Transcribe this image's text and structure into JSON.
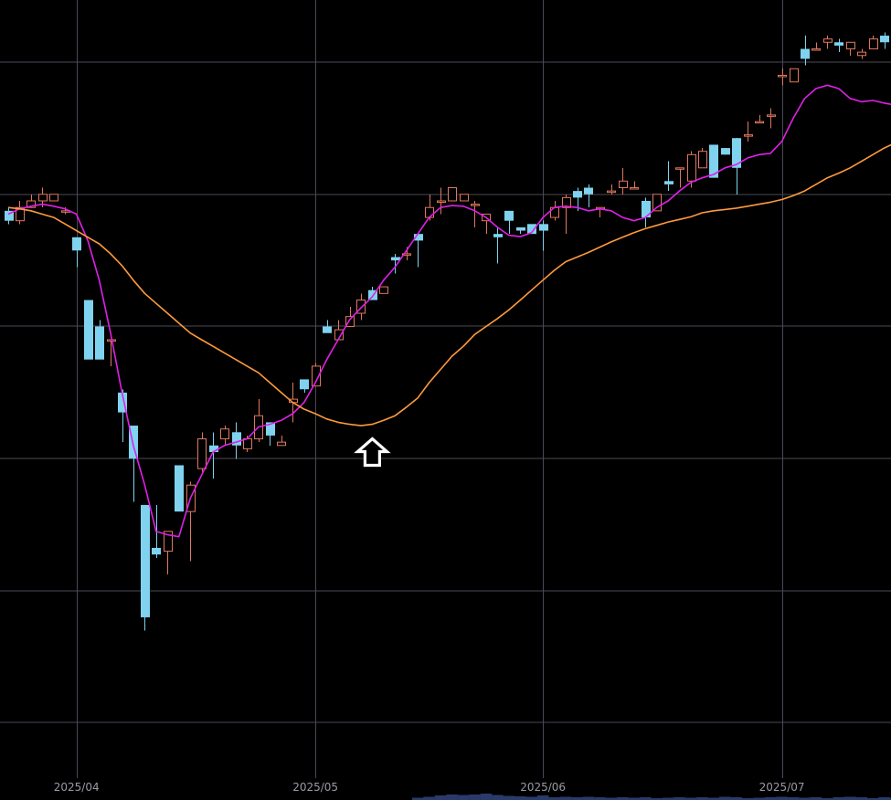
{
  "chart_data": {
    "type": "candlestick",
    "title": "",
    "xlabel": "",
    "ylabel": "",
    "x_tick_labels": [
      "2025/04",
      "2025/05",
      "2025/06",
      "2025/07"
    ],
    "x_tick_index": [
      6,
      27,
      47,
      68
    ],
    "num_candles": 79,
    "price_range": [
      0,
      100
    ],
    "grid": true,
    "colors": {
      "background": "#000000",
      "grid": "#4a4a58",
      "up": "#e0785e",
      "down": "#7fd3ef",
      "ma_short": "#e020e8",
      "ma_long": "#ff9a3c",
      "tick_text": "#9a9aa6",
      "volume": "#2a3a6a"
    },
    "indicator_icon": "up-arrow-outline-icon",
    "indicator_index": 32,
    "indicator_price": 43,
    "candles": [
      [
        77.5,
        76,
        78,
        75.5
      ],
      [
        76,
        78,
        79,
        75.5
      ],
      [
        78,
        79,
        80,
        78
      ],
      [
        79,
        80,
        81,
        78
      ],
      [
        79,
        80,
        80,
        79
      ],
      [
        77.5,
        77.5,
        78,
        77
      ],
      [
        73.5,
        71.5,
        73.5,
        69
      ],
      [
        64,
        55,
        64,
        55
      ],
      [
        60,
        55,
        61,
        55
      ],
      [
        58,
        58,
        58,
        54
      ],
      [
        50,
        47,
        50.5,
        42.5
      ],
      [
        45,
        40,
        45,
        33.5
      ],
      [
        33,
        16,
        33,
        14
      ],
      [
        26.5,
        25.5,
        33,
        25
      ],
      [
        26,
        29,
        27,
        22.5
      ],
      [
        39,
        32,
        39,
        32
      ],
      [
        32,
        36,
        36.5,
        24.5
      ],
      [
        38.5,
        43,
        44,
        38
      ],
      [
        42,
        41,
        44,
        37
      ],
      [
        43,
        44.5,
        45,
        42
      ],
      [
        44,
        42,
        45.5,
        40
      ],
      [
        41.5,
        43,
        43.5,
        41
      ],
      [
        43,
        46.5,
        49,
        42.5
      ],
      [
        45.5,
        43.5,
        45.5,
        42
      ],
      [
        42,
        42.5,
        43.5,
        42
      ],
      [
        48.5,
        49,
        51.5,
        45.5
      ],
      [
        52,
        50.5,
        52,
        50
      ],
      [
        51,
        54,
        54.5,
        51
      ],
      [
        60,
        59,
        61,
        59
      ],
      [
        58,
        59.5,
        61,
        58.5
      ],
      [
        60,
        61.5,
        63,
        60
      ],
      [
        62,
        64,
        65,
        61
      ],
      [
        65.5,
        64,
        66,
        64
      ],
      [
        65,
        66,
        66,
        65
      ],
      [
        70.5,
        70,
        71,
        68
      ],
      [
        71,
        71,
        72,
        70
      ],
      [
        74,
        73,
        74,
        69
      ],
      [
        76.5,
        78,
        80,
        76
      ],
      [
        79,
        79,
        81,
        77
      ],
      [
        79,
        81,
        81,
        79
      ],
      [
        79,
        80,
        80,
        79
      ],
      [
        78.5,
        78.5,
        79,
        75
      ],
      [
        76,
        77,
        77,
        74
      ],
      [
        74,
        73.5,
        75,
        69.5
      ],
      [
        77.5,
        76,
        77.5,
        74
      ],
      [
        75,
        74.5,
        75,
        74
      ],
      [
        75.5,
        74,
        75.5,
        74
      ],
      [
        75.5,
        74.5,
        76,
        71.5
      ],
      [
        76.5,
        78,
        79,
        76
      ],
      [
        78,
        79.5,
        80,
        74
      ],
      [
        80.5,
        79.5,
        81,
        77.5
      ],
      [
        81,
        80,
        81.5,
        78
      ],
      [
        78,
        78,
        78,
        76.5
      ],
      [
        80.5,
        80.5,
        81.5,
        80
      ],
      [
        81,
        82,
        84,
        80
      ],
      [
        81,
        81,
        82,
        81
      ],
      [
        79,
        76.5,
        79.5,
        75
      ],
      [
        77.5,
        80,
        80,
        78
      ],
      [
        82,
        81.5,
        85,
        80.5
      ],
      [
        84,
        84,
        84,
        81
      ],
      [
        82,
        86,
        86.5,
        81
      ],
      [
        84,
        86.5,
        87,
        84
      ],
      [
        87.5,
        82.5,
        87.5,
        82.5
      ],
      [
        87,
        86,
        87,
        86
      ],
      [
        88.5,
        84,
        88.5,
        80
      ],
      [
        89,
        89,
        91,
        88
      ],
      [
        91,
        91,
        92,
        91
      ],
      [
        92,
        92,
        93,
        90
      ],
      [
        98,
        98,
        99,
        96.5
      ],
      [
        97,
        99,
        99,
        97
      ],
      [
        102,
        100.5,
        104,
        99.5
      ],
      [
        102,
        102,
        103,
        102
      ],
      [
        103,
        103.5,
        104,
        102
      ],
      [
        103,
        102.5,
        103.5,
        101.5
      ],
      [
        102,
        103,
        103,
        101
      ],
      [
        101,
        101.5,
        102,
        100.5
      ],
      [
        102,
        103.5,
        104,
        102
      ],
      [
        104,
        103,
        104.5,
        102
      ],
      [
        101.5,
        102,
        102.5,
        100
      ]
    ],
    "series": [
      {
        "values": [
          77,
          77.8,
          78.2,
          78.5,
          78.2,
          77.8,
          77,
          73,
          67,
          59,
          50,
          42,
          36,
          29,
          28.5,
          28.2,
          34,
          37.5,
          41,
          42,
          42.5,
          43,
          44.8,
          45.2,
          45.8,
          46.8,
          48.5,
          51.5,
          55,
          58,
          61,
          62.8,
          64.5,
          67,
          69,
          71.5,
          74,
          76.5,
          78,
          78.3,
          78.2,
          77.5,
          76.5,
          75,
          73.8,
          73.6,
          74.2,
          76.5,
          78,
          78.2,
          78,
          77.5,
          77.8,
          77.5,
          76.5,
          76,
          76.5,
          78,
          79,
          80.5,
          81.8,
          82.5,
          83,
          84,
          84.5,
          85.5,
          86,
          86.2,
          88,
          91.5,
          94.5,
          96,
          96.5,
          96,
          94.5,
          94,
          94.2,
          93.8,
          93.5
        ]
      },
      {
        "values": [
          78,
          77.8,
          77.5,
          77,
          76.5,
          75.5,
          74.5,
          73.5,
          72.5,
          71,
          69.2,
          67,
          65,
          63.5,
          62,
          60.5,
          59,
          58,
          57,
          56,
          55,
          54,
          53,
          51.5,
          50,
          48.5,
          47.5,
          46.8,
          46,
          45.5,
          45.2,
          45,
          45.2,
          45.8,
          46.5,
          47.8,
          49.2,
          51.5,
          53.5,
          55.5,
          57,
          58.8,
          60,
          61.2,
          62.5,
          64,
          65.5,
          67,
          68.5,
          69.8,
          70.5,
          71.2,
          72,
          72.8,
          73.5,
          74.2,
          74.8,
          75.3,
          75.8,
          76.2,
          76.6,
          77.2,
          77.5,
          77.7,
          77.9,
          78.2,
          78.5,
          78.8,
          79.2,
          79.8,
          80.5,
          81.5,
          82.5,
          83.2,
          84,
          85,
          86,
          87,
          87.8
        ]
      }
    ],
    "volume": [
      0,
      0,
      0,
      0,
      0,
      0,
      0,
      0,
      0,
      0,
      0,
      0,
      0,
      0,
      0,
      0,
      0,
      0,
      0,
      0,
      0,
      0,
      0,
      0,
      0,
      0,
      0,
      0,
      0,
      0,
      0,
      0,
      0,
      0,
      0,
      0,
      0.25,
      0.35,
      0.5,
      0.6,
      0.55,
      0.6,
      0.7,
      0.55,
      0.45,
      0.4,
      0.35,
      0.5,
      0.3,
      0.35,
      0.3,
      0.35,
      0.3,
      0.25,
      0.3,
      0.25,
      0.3,
      0.2,
      0.25,
      0.3,
      0.25,
      0.3,
      0.25,
      0.35,
      0.3,
      0.2,
      0.25,
      0.3,
      0.35,
      0.3,
      0.25,
      0.3,
      0.2,
      0.3,
      0.35,
      0.3,
      0.2,
      0.3,
      0.25
    ]
  }
}
